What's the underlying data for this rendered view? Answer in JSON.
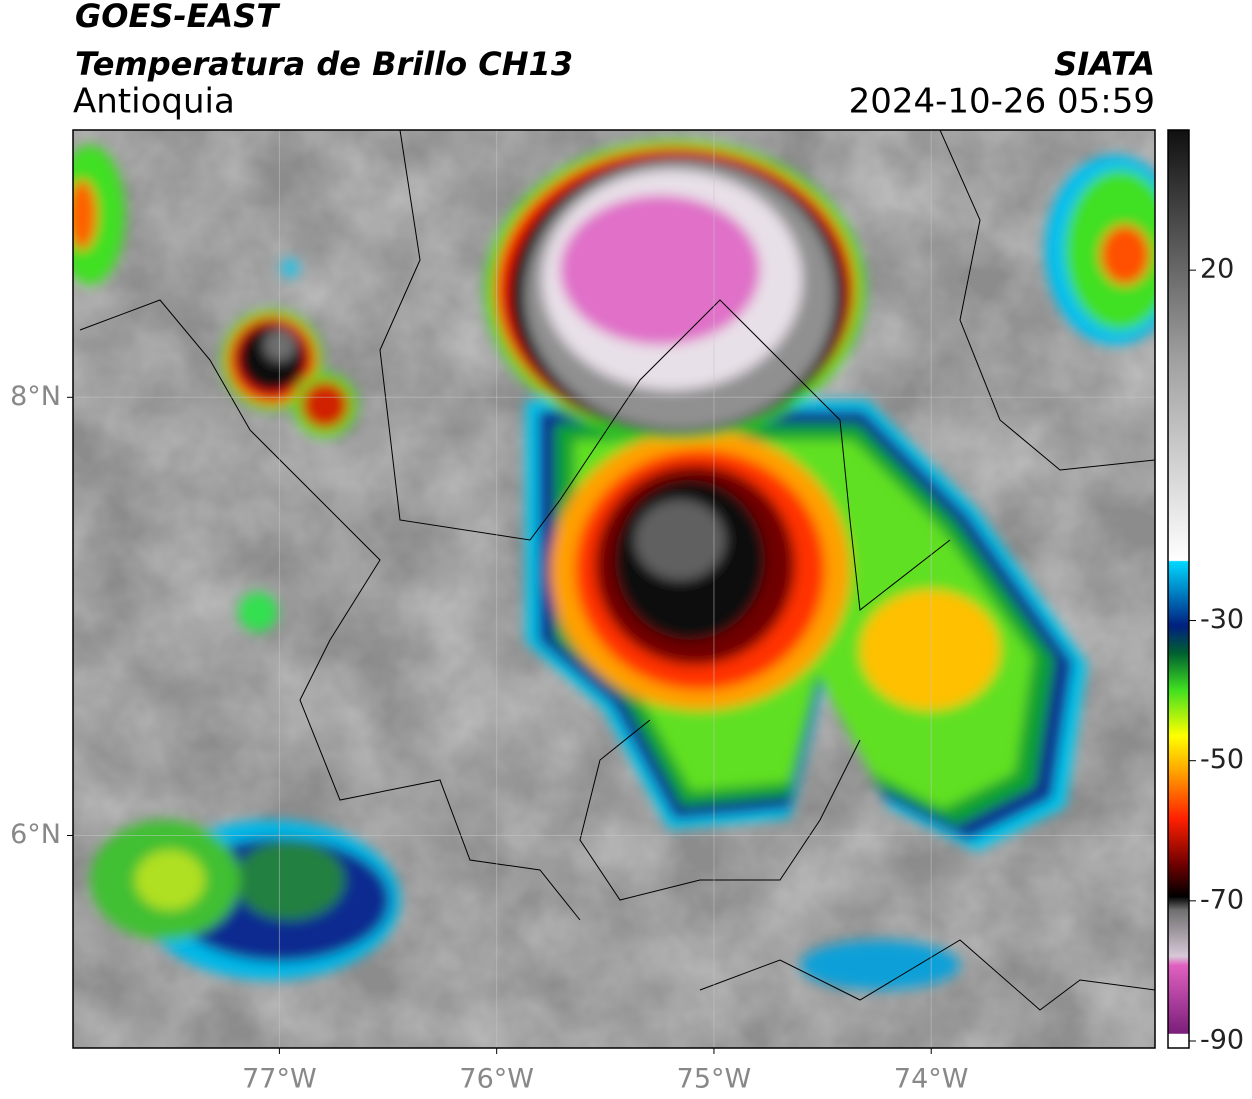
{
  "header": {
    "title": "GOES-EAST",
    "subtitle": "Temperatura de Brillo CH13",
    "region": "Antioquia",
    "source": "SIATA",
    "timestamp": "2024-10-26 05:59"
  },
  "map": {
    "xlim": [
      -77.95,
      -72.97
    ],
    "ylim": [
      5.03,
      9.22
    ],
    "xticks": [
      {
        "value": -77,
        "label": "77°W"
      },
      {
        "value": -76,
        "label": "76°W"
      },
      {
        "value": -75,
        "label": "75°W"
      },
      {
        "value": -74,
        "label": "74°W"
      }
    ],
    "yticks": [
      {
        "value": 8,
        "label": "8°N"
      },
      {
        "value": 6,
        "label": "6°N"
      }
    ],
    "grid": true
  },
  "colorbar": {
    "lim": [
      -91,
      40
    ],
    "ticks": [
      20,
      -30,
      -50,
      -70,
      -90
    ]
  }
}
